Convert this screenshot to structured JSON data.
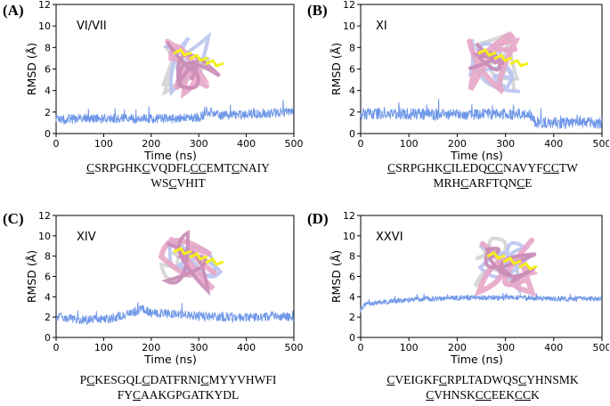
{
  "colors": {
    "line": "#6f97e8",
    "helixPink": "#e8a6c8",
    "helixBlue": "#b9c4ef",
    "helixGrey": "#d4d4d4",
    "sulfur": "#f2ef1c"
  },
  "panels": [
    {
      "label": "(A)",
      "tag": "VI/VII",
      "seq": [
        "CSRPGHKCVQDFLCCEMTCNAIY",
        "WSCVHIT"
      ],
      "underline": [
        [
          0,
          7,
          13,
          14,
          18
        ],
        [
          2
        ]
      ]
    },
    {
      "label": "(B)",
      "tag": "XI",
      "seq": [
        "CSRPGHKCILEDQCCNAVYFCCTW",
        "MRHCARFTQNCE"
      ],
      "underline": [
        [
          0,
          7,
          13,
          14,
          20,
          21
        ],
        [
          3,
          10
        ]
      ]
    },
    {
      "label": "(C)",
      "tag": "XIV",
      "seq": [
        "PCKESGQLCDATFRNICMYYVHWFI",
        "FYCAAKGPGATKYDL"
      ],
      "underline": [
        [
          1,
          8,
          16
        ],
        [
          2
        ]
      ]
    },
    {
      "label": "(D)",
      "tag": "XXVI",
      "seq": [
        "CVEIGKFCRPLTADWQSCYHNSMK",
        "CVHNSKCCEEKCCK"
      ],
      "underline": [
        [
          0,
          7,
          17
        ],
        [
          0,
          6,
          7,
          11,
          12
        ]
      ]
    }
  ],
  "axes": {
    "xlabel": "Time (ns)",
    "ylabel": "RMSD (Å)"
  },
  "chart_data": [
    {
      "type": "line",
      "title": "VI/VII",
      "xlabel": "Time (ns)",
      "ylabel": "RMSD (Å)",
      "xlim": [
        0,
        500
      ],
      "ylim": [
        0,
        12
      ],
      "xticks": [
        0,
        100,
        200,
        300,
        400,
        500
      ],
      "yticks": [
        0,
        2,
        4,
        6,
        8,
        10,
        12
      ],
      "series": [
        {
          "x": [
            0,
            50,
            100,
            150,
            200,
            250,
            300,
            320,
            350,
            400,
            450,
            500
          ],
          "y": [
            1.3,
            1.4,
            1.4,
            1.4,
            1.4,
            1.4,
            1.5,
            2.0,
            1.7,
            1.8,
            1.9,
            2.1
          ],
          "noise": 0.45
        }
      ]
    },
    {
      "type": "line",
      "title": "XI",
      "xlabel": "Time (ns)",
      "ylabel": "RMSD (Å)",
      "xlim": [
        0,
        500
      ],
      "ylim": [
        0,
        12
      ],
      "xticks": [
        0,
        100,
        200,
        300,
        400,
        500
      ],
      "yticks": [
        0,
        2,
        4,
        6,
        8,
        10,
        12
      ],
      "series": [
        {
          "x": [
            0,
            50,
            100,
            150,
            200,
            250,
            300,
            350,
            360,
            400,
            450,
            500
          ],
          "y": [
            1.8,
            1.9,
            1.8,
            1.8,
            1.8,
            1.8,
            1.8,
            1.8,
            1.1,
            1.0,
            1.0,
            1.0
          ],
          "noise": 0.55
        }
      ]
    },
    {
      "type": "line",
      "title": "XIV",
      "xlabel": "Time (ns)",
      "ylabel": "RMSD (Å)",
      "xlim": [
        0,
        500
      ],
      "ylim": [
        0,
        12
      ],
      "xticks": [
        0,
        100,
        200,
        300,
        400,
        500
      ],
      "yticks": [
        0,
        2,
        4,
        6,
        8,
        10,
        12
      ],
      "series": [
        {
          "x": [
            0,
            50,
            100,
            150,
            180,
            200,
            250,
            300,
            350,
            400,
            450,
            500
          ],
          "y": [
            2.1,
            1.7,
            1.8,
            2.2,
            2.8,
            2.4,
            2.3,
            2.1,
            2.0,
            2.0,
            2.1,
            2.0
          ],
          "noise": 0.45
        }
      ]
    },
    {
      "type": "line",
      "title": "XXVI",
      "xlabel": "Time (ns)",
      "ylabel": "RMSD (Å)",
      "xlim": [
        0,
        500
      ],
      "ylim": [
        0,
        12
      ],
      "xticks": [
        0,
        100,
        200,
        300,
        400,
        500
      ],
      "yticks": [
        0,
        2,
        4,
        6,
        8,
        10,
        12
      ],
      "series": [
        {
          "x": [
            0,
            10,
            50,
            100,
            150,
            200,
            250,
            300,
            350,
            400,
            450,
            500
          ],
          "y": [
            2.6,
            3.3,
            3.5,
            3.7,
            3.8,
            3.9,
            3.9,
            3.9,
            3.9,
            3.8,
            3.8,
            3.8
          ],
          "noise": 0.25
        }
      ]
    }
  ]
}
